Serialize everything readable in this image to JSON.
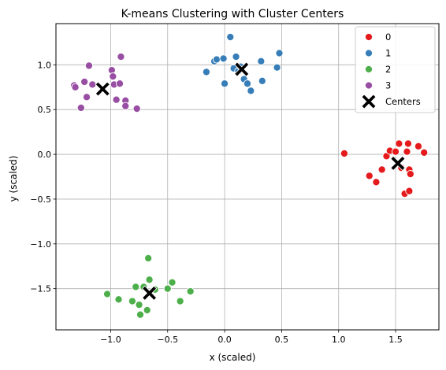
{
  "chart_data": {
    "type": "scatter",
    "title": "K-means Clustering with Cluster Centers",
    "xlabel": "x (scaled)",
    "ylabel": "y (scaled)",
    "xlim": [
      -1.48,
      1.88
    ],
    "ylim": [
      -1.96,
      1.46
    ],
    "xticks": [
      -1.0,
      -0.5,
      0.0,
      0.5,
      1.0,
      1.5
    ],
    "xtick_labels": [
      "−1.0",
      "−0.5",
      "0.0",
      "0.5",
      "1.0",
      "1.5"
    ],
    "yticks": [
      1.0,
      0.5,
      0.0,
      -0.5,
      -1.0,
      -1.5
    ],
    "ytick_labels": [
      "1.0",
      "0.5",
      "0.0",
      "−0.5",
      "−1.0",
      "−1.5"
    ],
    "grid": true,
    "legend": {
      "placement": "top-right"
    },
    "series": [
      {
        "name": "0",
        "color": "#e41a1c",
        "points": [
          [
            1.05,
            0.01
          ],
          [
            1.27,
            -0.24
          ],
          [
            1.33,
            -0.31
          ],
          [
            1.38,
            -0.17
          ],
          [
            1.42,
            -0.02
          ],
          [
            1.45,
            0.04
          ],
          [
            1.5,
            0.03
          ],
          [
            1.53,
            0.12
          ],
          [
            1.55,
            -0.15
          ],
          [
            1.58,
            -0.44
          ],
          [
            1.6,
            0.03
          ],
          [
            1.61,
            0.12
          ],
          [
            1.62,
            -0.17
          ],
          [
            1.62,
            -0.41
          ],
          [
            1.63,
            -0.22
          ],
          [
            1.7,
            0.09
          ],
          [
            1.75,
            0.02
          ]
        ]
      },
      {
        "name": "1",
        "color": "#377eb8",
        "points": [
          [
            -0.16,
            0.92
          ],
          [
            -0.09,
            1.04
          ],
          [
            -0.07,
            1.06
          ],
          [
            -0.01,
            1.07
          ],
          [
            0.0,
            0.79
          ],
          [
            0.05,
            1.31
          ],
          [
            0.08,
            0.96
          ],
          [
            0.1,
            1.09
          ],
          [
            0.12,
            0.93
          ],
          [
            0.14,
            0.98
          ],
          [
            0.17,
            0.84
          ],
          [
            0.2,
            0.79
          ],
          [
            0.23,
            0.71
          ],
          [
            0.32,
            1.04
          ],
          [
            0.33,
            0.82
          ],
          [
            0.46,
            0.97
          ],
          [
            0.48,
            1.13
          ]
        ]
      },
      {
        "name": "2",
        "color": "#4daf4a",
        "points": [
          [
            -1.03,
            -1.56
          ],
          [
            -0.93,
            -1.62
          ],
          [
            -0.81,
            -1.64
          ],
          [
            -0.78,
            -1.48
          ],
          [
            -0.75,
            -1.68
          ],
          [
            -0.74,
            -1.79
          ],
          [
            -0.71,
            -1.48
          ],
          [
            -0.68,
            -1.74
          ],
          [
            -0.67,
            -1.16
          ],
          [
            -0.66,
            -1.4
          ],
          [
            -0.61,
            -1.51
          ],
          [
            -0.5,
            -1.5
          ],
          [
            -0.46,
            -1.43
          ],
          [
            -0.39,
            -1.64
          ],
          [
            -0.3,
            -1.53
          ]
        ]
      },
      {
        "name": "3",
        "color": "#984ea3",
        "points": [
          [
            -1.32,
            0.77
          ],
          [
            -1.31,
            0.75
          ],
          [
            -1.26,
            0.52
          ],
          [
            -1.23,
            0.81
          ],
          [
            -1.21,
            0.64
          ],
          [
            -1.19,
            0.99
          ],
          [
            -1.16,
            0.78
          ],
          [
            -0.99,
            0.94
          ],
          [
            -0.98,
            0.87
          ],
          [
            -0.97,
            0.78
          ],
          [
            -0.95,
            0.61
          ],
          [
            -0.92,
            0.79
          ],
          [
            -0.91,
            1.09
          ],
          [
            -0.87,
            0.6
          ],
          [
            -0.87,
            0.54
          ],
          [
            -0.77,
            0.51
          ]
        ]
      }
    ],
    "centers": {
      "name": "Centers",
      "color": "#000000",
      "marker": "X",
      "points": [
        [
          1.52,
          -0.1
        ],
        [
          0.15,
          0.95
        ],
        [
          -0.66,
          -1.55
        ],
        [
          -1.07,
          0.73
        ]
      ]
    }
  }
}
